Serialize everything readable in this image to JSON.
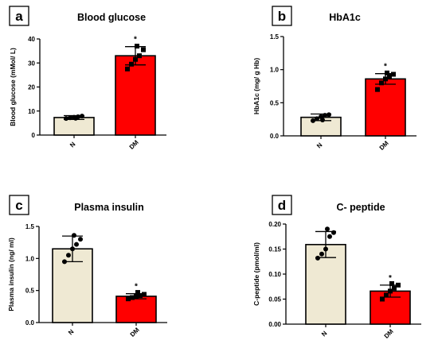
{
  "colors": {
    "bar_n": "#efe9d3",
    "bar_dm": "#ff0000",
    "stroke": "#000000"
  },
  "chart_data": [
    {
      "panel": "a",
      "type": "bar",
      "title": "Blood glucose",
      "xlabel": "",
      "ylabel": "Blood glucose (mMol/ L)",
      "categories": [
        "N",
        "DM"
      ],
      "values": [
        7.3,
        33.0
      ],
      "errors": [
        0.8,
        3.8
      ],
      "points": [
        [
          6.9,
          7.2,
          7.4,
          7.6,
          7.9,
          7.0
        ],
        [
          27.5,
          29.5,
          31.5,
          33.0,
          35.5,
          37.0
        ]
      ],
      "significance": [
        "",
        "*"
      ],
      "ylim": [
        0,
        40
      ],
      "yticks": [
        0,
        10,
        20,
        30,
        40
      ],
      "ytick_labels": [
        "0",
        "10",
        "20",
        "30",
        "40"
      ]
    },
    {
      "panel": "b",
      "type": "bar",
      "title": "HbA1c",
      "xlabel": "",
      "ylabel": "HbA1c (mg/ g Hb)",
      "categories": [
        "N",
        "DM"
      ],
      "values": [
        0.28,
        0.86
      ],
      "errors": [
        0.05,
        0.08
      ],
      "points": [
        [
          0.23,
          0.26,
          0.29,
          0.31,
          0.32,
          0.24
        ],
        [
          0.7,
          0.8,
          0.86,
          0.9,
          0.93,
          0.95
        ]
      ],
      "significance": [
        "",
        "*"
      ],
      "ylim": [
        0,
        1.5
      ],
      "yticks": [
        0,
        0.5,
        1.0,
        1.5
      ],
      "ytick_labels": [
        "0.0",
        "0.5",
        "1.0",
        "1.5"
      ]
    },
    {
      "panel": "c",
      "type": "bar",
      "title": "Plasma insulin",
      "xlabel": "",
      "ylabel": "Plasma insulin (ng/ ml)",
      "categories": [
        "N",
        "DM"
      ],
      "values": [
        1.15,
        0.41
      ],
      "errors": [
        0.2,
        0.04
      ],
      "points": [
        [
          0.95,
          1.05,
          1.15,
          1.22,
          1.3,
          1.36
        ],
        [
          0.37,
          0.39,
          0.41,
          0.42,
          0.44,
          0.47
        ]
      ],
      "significance": [
        "",
        "*"
      ],
      "ylim": [
        0,
        1.5
      ],
      "yticks": [
        0,
        0.5,
        1.0,
        1.5
      ],
      "ytick_labels": [
        "0.0",
        "0.5",
        "1.0",
        "1.5"
      ]
    },
    {
      "panel": "d",
      "type": "bar",
      "title": "C- peptide",
      "xlabel": "",
      "ylabel": "C-peptide (pmol/ml)",
      "categories": [
        "N",
        "DM"
      ],
      "values": [
        0.159,
        0.066
      ],
      "errors": [
        0.026,
        0.012
      ],
      "points": [
        [
          0.132,
          0.14,
          0.15,
          0.175,
          0.183,
          0.19
        ],
        [
          0.05,
          0.058,
          0.066,
          0.072,
          0.078,
          0.081
        ]
      ],
      "significance": [
        "",
        "*"
      ],
      "ylim": [
        0,
        0.2
      ],
      "yticks": [
        0,
        0.05,
        0.1,
        0.15,
        0.2
      ],
      "ytick_labels": [
        "0.00",
        "0.05",
        "0.10",
        "0.15",
        "0.20"
      ]
    }
  ]
}
